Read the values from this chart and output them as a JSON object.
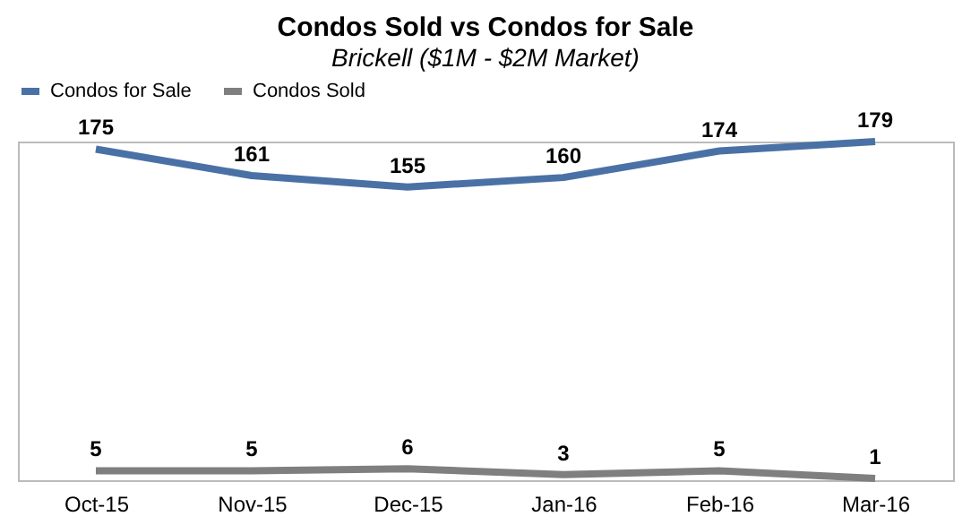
{
  "chart_data": {
    "type": "line",
    "title": "Condos Sold vs Condos for Sale",
    "subtitle": "Brickell ($1M - $2M Market)",
    "categories": [
      "Oct-15",
      "Nov-15",
      "Dec-15",
      "Jan-16",
      "Feb-16",
      "Mar-16"
    ],
    "series": [
      {
        "name": "Condos for Sale",
        "color": "#4a71a5",
        "values": [
          175,
          161,
          155,
          160,
          174,
          179
        ]
      },
      {
        "name": "Condos Sold",
        "color": "#7f7f7f",
        "values": [
          5,
          5,
          6,
          3,
          5,
          1
        ]
      }
    ],
    "data_labels": true,
    "legend": "top",
    "grid": false,
    "tick_labels": "x",
    "marker": "none",
    "line_style": "solid"
  }
}
